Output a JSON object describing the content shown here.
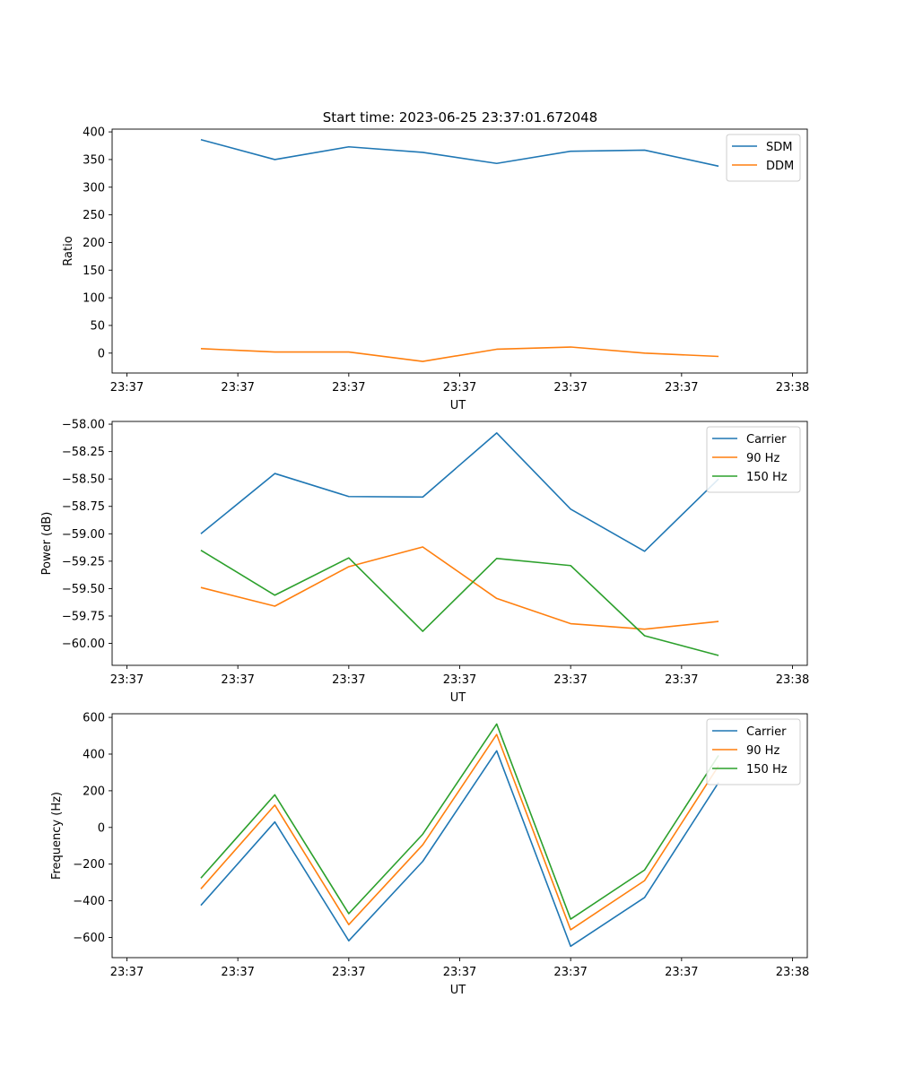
{
  "figure_title": "Start time: 2023-06-25 23:37:01.672048",
  "colors": {
    "blue": "#1f77b4",
    "orange": "#ff7f0e",
    "green": "#2ca02c"
  },
  "chart_data": [
    {
      "type": "line",
      "title": "Start time: 2023-06-25 23:37:01.672048",
      "xlabel": "UT",
      "ylabel": "Ratio",
      "x": [
        1.2,
        2.2,
        3.2,
        4.2,
        5.2,
        6.2,
        7.2,
        8.2
      ],
      "xlim": [
        0,
        9.4
      ],
      "xticks": [
        0.2,
        1.7,
        3.2,
        4.7,
        6.2,
        7.7,
        9.2
      ],
      "xtick_labels": [
        "23:37",
        "23:37",
        "23:37",
        "23:37",
        "23:37",
        "23:37",
        "23:37"
      ],
      "xtick_last_label": "23:38",
      "ylim": [
        -36,
        405
      ],
      "yticks": [
        0,
        50,
        100,
        150,
        200,
        250,
        300,
        350,
        400
      ],
      "ytick_labels": [
        "0",
        "50",
        "100",
        "150",
        "200",
        "250",
        "300",
        "350",
        "400"
      ],
      "legend": "upper right",
      "series": [
        {
          "name": "SDM",
          "color": "#1f77b4",
          "values": [
            386,
            350,
            373,
            363,
            343,
            365,
            367,
            338
          ]
        },
        {
          "name": "DDM",
          "color": "#ff7f0e",
          "values": [
            8,
            2,
            2,
            -15,
            7,
            11,
            0,
            -6
          ]
        }
      ]
    },
    {
      "type": "line",
      "xlabel": "UT",
      "ylabel": "Power (dB)",
      "x": [
        1.2,
        2.2,
        3.2,
        4.2,
        5.2,
        6.2,
        7.2,
        8.2
      ],
      "xlim": [
        0,
        9.4
      ],
      "xticks": [
        0.2,
        1.7,
        3.2,
        4.7,
        6.2,
        7.7,
        9.2
      ],
      "xtick_labels": [
        "23:37",
        "23:37",
        "23:37",
        "23:37",
        "23:37",
        "23:37",
        "23:37"
      ],
      "xtick_last_label": "23:38",
      "ylim": [
        -60.2,
        -57.975
      ],
      "yticks": [
        -60.0,
        -59.75,
        -59.5,
        -59.25,
        -59.0,
        -58.75,
        -58.5,
        -58.25,
        -58.0
      ],
      "ytick_labels": [
        "−60.00",
        "−59.75",
        "−59.50",
        "−59.25",
        "−59.00",
        "−58.75",
        "−58.50",
        "−58.25",
        "−58.00"
      ],
      "legend": "upper right",
      "series": [
        {
          "name": "Carrier",
          "color": "#1f77b4",
          "values": [
            -59.0,
            -58.45,
            -58.66,
            -58.665,
            -58.08,
            -58.775,
            -59.16,
            -58.5
          ]
        },
        {
          "name": "90 Hz",
          "color": "#ff7f0e",
          "values": [
            -59.49,
            -59.66,
            -59.3,
            -59.12,
            -59.59,
            -59.82,
            -59.87,
            -59.8
          ]
        },
        {
          "name": "150 Hz",
          "color": "#2ca02c",
          "values": [
            -59.15,
            -59.56,
            -59.22,
            -59.89,
            -59.225,
            -59.29,
            -59.93,
            -60.11
          ]
        }
      ]
    },
    {
      "type": "line",
      "xlabel": "UT",
      "ylabel": "Frequency (Hz)",
      "x": [
        1.2,
        2.2,
        3.2,
        4.2,
        5.2,
        6.2,
        7.2,
        8.2
      ],
      "xlim": [
        0,
        9.4
      ],
      "xticks": [
        0.2,
        1.7,
        3.2,
        4.7,
        6.2,
        7.7,
        9.2
      ],
      "xtick_labels": [
        "23:37",
        "23:37",
        "23:37",
        "23:37",
        "23:37",
        "23:37",
        "23:37"
      ],
      "xtick_last_label": "23:38",
      "ylim": [
        -710,
        620
      ],
      "yticks": [
        -600,
        -400,
        -200,
        0,
        200,
        400,
        600
      ],
      "ytick_labels": [
        "−600",
        "−400",
        "−200",
        "0",
        "200",
        "400",
        "600"
      ],
      "legend": "upper right",
      "series": [
        {
          "name": "Carrier",
          "color": "#1f77b4",
          "values": [
            -425,
            30,
            -618,
            -185,
            418,
            -648,
            -382,
            245
          ]
        },
        {
          "name": "90 Hz",
          "color": "#ff7f0e",
          "values": [
            -335,
            122,
            -530,
            -95,
            507,
            -558,
            -290,
            336
          ]
        },
        {
          "name": "150 Hz",
          "color": "#2ca02c",
          "values": [
            -276,
            178,
            -470,
            -37,
            564,
            -500,
            -232,
            393
          ]
        }
      ]
    }
  ]
}
